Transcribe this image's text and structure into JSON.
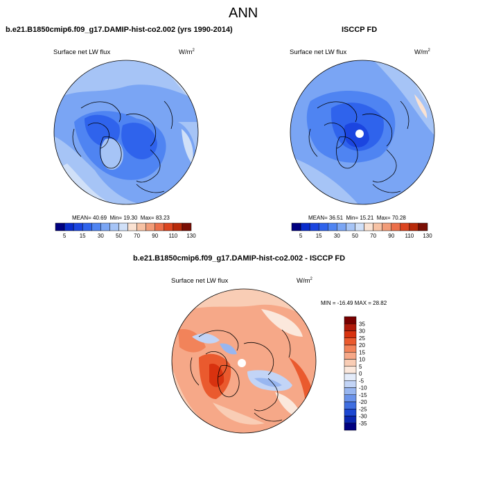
{
  "figure": {
    "title": "ANN"
  },
  "panels": [
    {
      "id": "model",
      "heading": "b.e21.B1850cmip6.f09_g17.DAMIP-hist-co2.002 (yrs 1990-2014)",
      "variable": "Surface net LW flux",
      "units_base": "W/m",
      "units_exp": "2",
      "stats": {
        "mean_label": "MEAN=",
        "mean": "40.69",
        "min_label": "Min=",
        "min": "19.30",
        "max_label": "Max=",
        "max": "83.23"
      },
      "colorbar_ticks": [
        "5",
        "15",
        "30",
        "50",
        "70",
        "90",
        "110",
        "130"
      ]
    },
    {
      "id": "obs",
      "heading": "ISCCP FD",
      "variable": "Surface net LW flux",
      "units_base": "W/m",
      "units_exp": "2",
      "stats": {
        "mean_label": "MEAN=",
        "mean": "36.51",
        "min_label": "Min=",
        "min": "15.21",
        "max_label": "Max=",
        "max": "70.28"
      },
      "colorbar_ticks": [
        "5",
        "15",
        "30",
        "50",
        "70",
        "90",
        "110",
        "130"
      ]
    },
    {
      "id": "diff",
      "heading": "b.e21.B1850cmip6.f09_g17.DAMIP-hist-co2.002 - ISCCP FD",
      "variable": "Surface net LW flux",
      "units_base": "W/m",
      "units_exp": "2",
      "minmax": "MIN = -16.49  MAX =  28.82",
      "colorbar_ticks": [
        "35",
        "30",
        "25",
        "20",
        "15",
        "10",
        "5",
        "0",
        "-5",
        "-10",
        "-15",
        "-20",
        "-25",
        "-30",
        "-35"
      ]
    }
  ],
  "colors": {
    "abs_scale": [
      "#000080",
      "#0a2ccc",
      "#1b45e0",
      "#2f63ec",
      "#4f84f2",
      "#7aa5f4",
      "#a6c4f6",
      "#d0e0f8",
      "#fae2d2",
      "#f7c2a4",
      "#f29c78",
      "#ec6f4a",
      "#dc4520",
      "#b82a0a",
      "#7a0f05"
    ],
    "diff_scale": [
      "#780000",
      "#b01a0a",
      "#d8320f",
      "#ea5a2e",
      "#f2835a",
      "#f6a888",
      "#f9cdb5",
      "#fbe8dc",
      "#e4ecfa",
      "#c2d4f6",
      "#98b6f0",
      "#6b93ea",
      "#3f6ee0",
      "#1c47d2",
      "#0a26b0",
      "#000080"
    ]
  }
}
